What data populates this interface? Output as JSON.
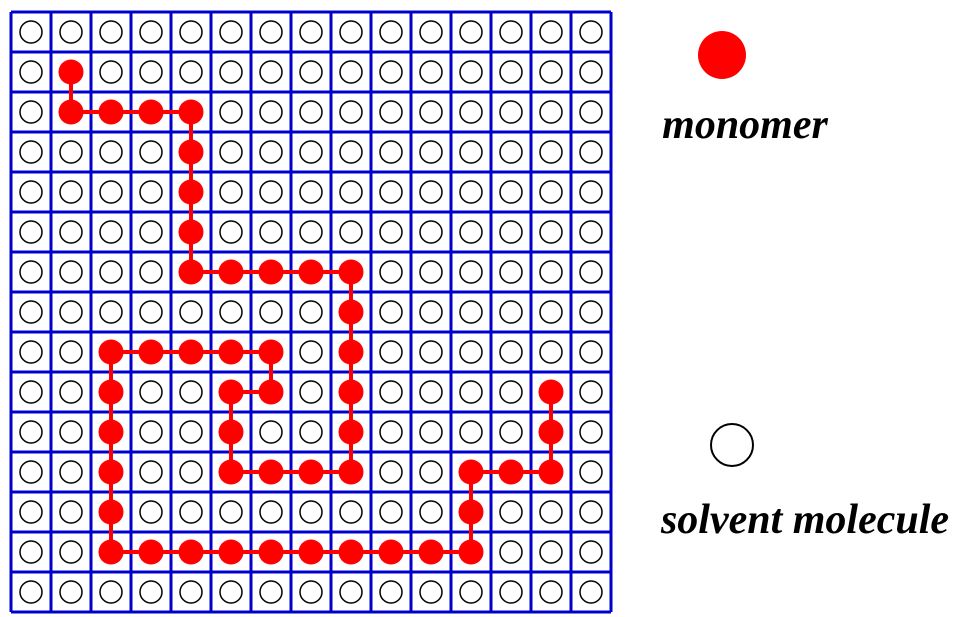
{
  "legend": [
    {
      "label": "monomer"
    },
    {
      "label": "solvent molecule"
    }
  ]
}
